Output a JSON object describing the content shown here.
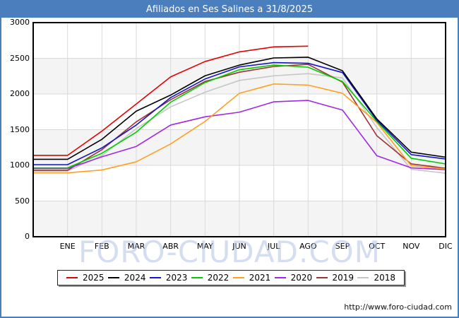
{
  "title": "Afiliados en Ses Salines a 31/8/2025",
  "watermark": "FORO-CIUDAD.COM",
  "footer": {
    "url": "http://www.foro-ciudad.com"
  },
  "colors": {
    "frame": "#4a7ebc",
    "titlebar_bg": "#4a7ebc",
    "titlebar_text": "#ffffff",
    "grid": "#d9d9d9",
    "band": "#f4f4f4",
    "plot_border": "#000000"
  },
  "chart_data": {
    "type": "line",
    "title": "Afiliados en Ses Salines a 31/8/2025",
    "xlabel": "",
    "ylabel": "",
    "x_categories": [
      "ENE",
      "FEB",
      "MAR",
      "ABR",
      "MAY",
      "JUN",
      "JUL",
      "AGO",
      "SEP",
      "OCT",
      "NOV",
      "DIC"
    ],
    "y_ticks": [
      0,
      500,
      1000,
      1500,
      2000,
      2500,
      3000
    ],
    "ylim": [
      0,
      3000
    ],
    "grid": true,
    "legend_position": "bottom",
    "series": [
      {
        "name": "2025",
        "color": "#e60000",
        "values": [
          1140,
          1480,
          1860,
          2240,
          2455,
          2590,
          2660,
          2670
        ]
      },
      {
        "name": "2024",
        "color": "#000000",
        "values": [
          1085,
          1365,
          1760,
          1985,
          2255,
          2405,
          2505,
          2515,
          2325,
          1650,
          1185,
          1115
        ]
      },
      {
        "name": "2023",
        "color": "#1414cc",
        "values": [
          1010,
          1245,
          1565,
          1950,
          2210,
          2380,
          2440,
          2430,
          2300,
          1630,
          1150,
          1090
        ]
      },
      {
        "name": "2022",
        "color": "#00cc00",
        "values": [
          965,
          1170,
          1465,
          1885,
          2160,
          2340,
          2405,
          2375,
          2175,
          1615,
          1100,
          1020
        ]
      },
      {
        "name": "2021",
        "color": "#ffa022",
        "values": [
          895,
          935,
          1050,
          1300,
          1615,
          2010,
          2140,
          2125,
          2010,
          1600,
          995,
          950
        ]
      },
      {
        "name": "2020",
        "color": "#a128e6",
        "values": [
          955,
          1120,
          1265,
          1565,
          1680,
          1745,
          1890,
          1910,
          1775,
          1135,
          965,
          940
        ]
      },
      {
        "name": "2019",
        "color": "#a03333",
        "values": [
          930,
          1220,
          1610,
          1920,
          2175,
          2305,
          2385,
          2415,
          2165,
          1415,
          1020,
          960
        ]
      },
      {
        "name": "2018",
        "color": "#c6c6c6",
        "values": [
          920,
          1135,
          1515,
          1820,
          2025,
          2190,
          2255,
          2285,
          2225,
          1530,
          945,
          890
        ]
      }
    ]
  }
}
